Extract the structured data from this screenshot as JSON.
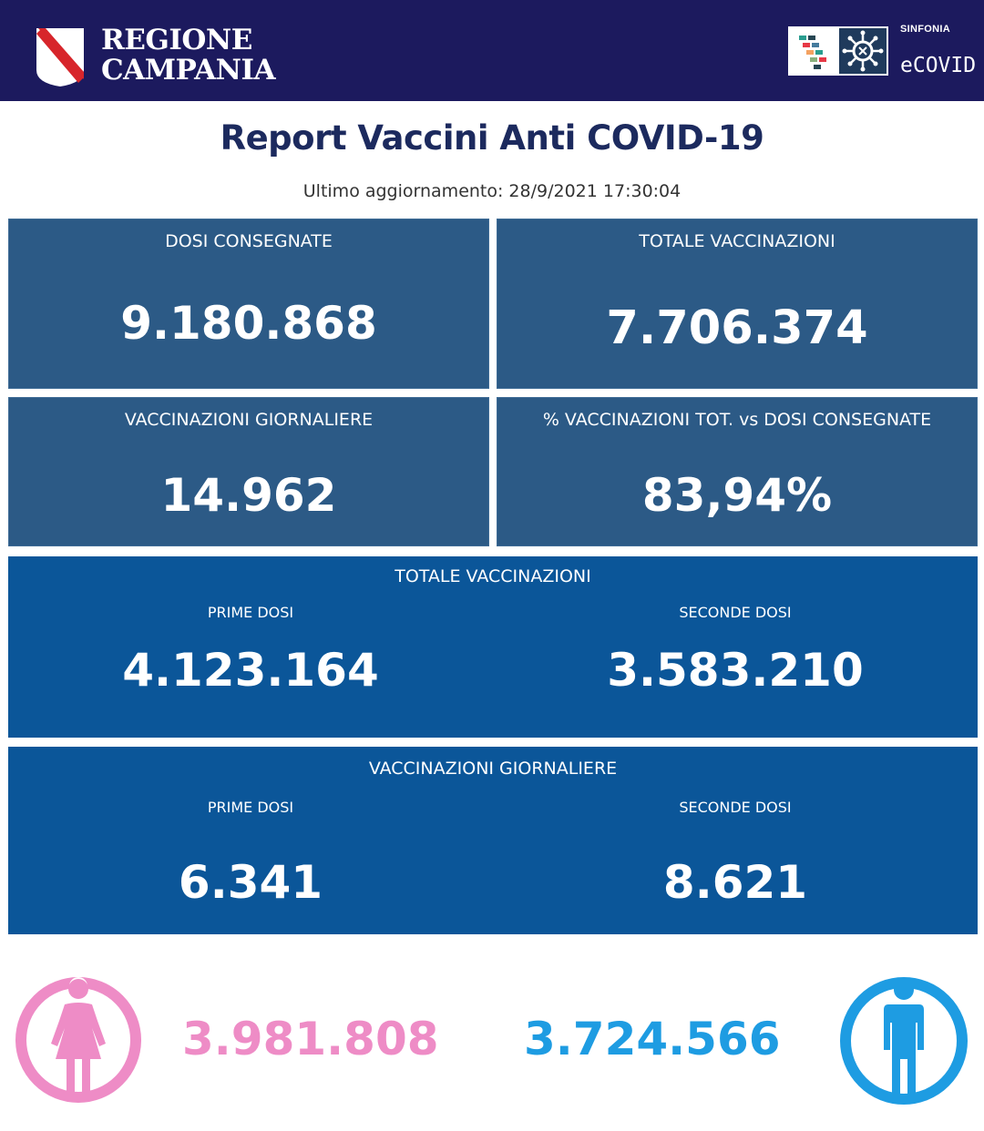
{
  "header": {
    "region_line1": "REGIONE",
    "region_line2": "CAMPANIA",
    "sinfonia_label": "SINFONIA",
    "ecovid_label": "eCOVID",
    "bg_color": "#1c1a5e"
  },
  "report": {
    "title": "Report Vaccini Anti COVID-19",
    "last_update": "Ultimo aggiornamento: 28/9/2021  17:30:04"
  },
  "cards": {
    "dosi_consegnate": {
      "label": "DOSI  CONSEGNATE",
      "value": "9.180.868"
    },
    "totale_vaccinazioni": {
      "label": "TOTALE VACCINAZIONI",
      "value": "7.706.374"
    },
    "vaccinazioni_giornaliere": {
      "label": "VACCINAZIONI GIORNALIERE",
      "value": "14.962"
    },
    "percentuale": {
      "label": "% VACCINAZIONI TOT. vs DOSI CONSEGNATE",
      "value": "83,94%"
    }
  },
  "totale_breakdown": {
    "label": "TOTALE VACCINAZIONI",
    "prime_label": "PRIME DOSI",
    "prime_value": "4.123.164",
    "seconde_label": "SECONDE DOSI",
    "seconde_value": "3.583.210"
  },
  "giornaliere_breakdown": {
    "label": "VACCINAZIONI GIORNALIERE",
    "prime_label": "PRIME DOSI",
    "prime_value": "6.341",
    "seconde_label": "SECONDE DOSI",
    "seconde_value": "8.621"
  },
  "gender": {
    "female_value": "3.981.808",
    "male_value": "3.724.566",
    "female_icon": "female-person-icon",
    "male_icon": "male-person-icon",
    "female_color": "#ee8cc6",
    "male_color": "#1e9ce2"
  }
}
